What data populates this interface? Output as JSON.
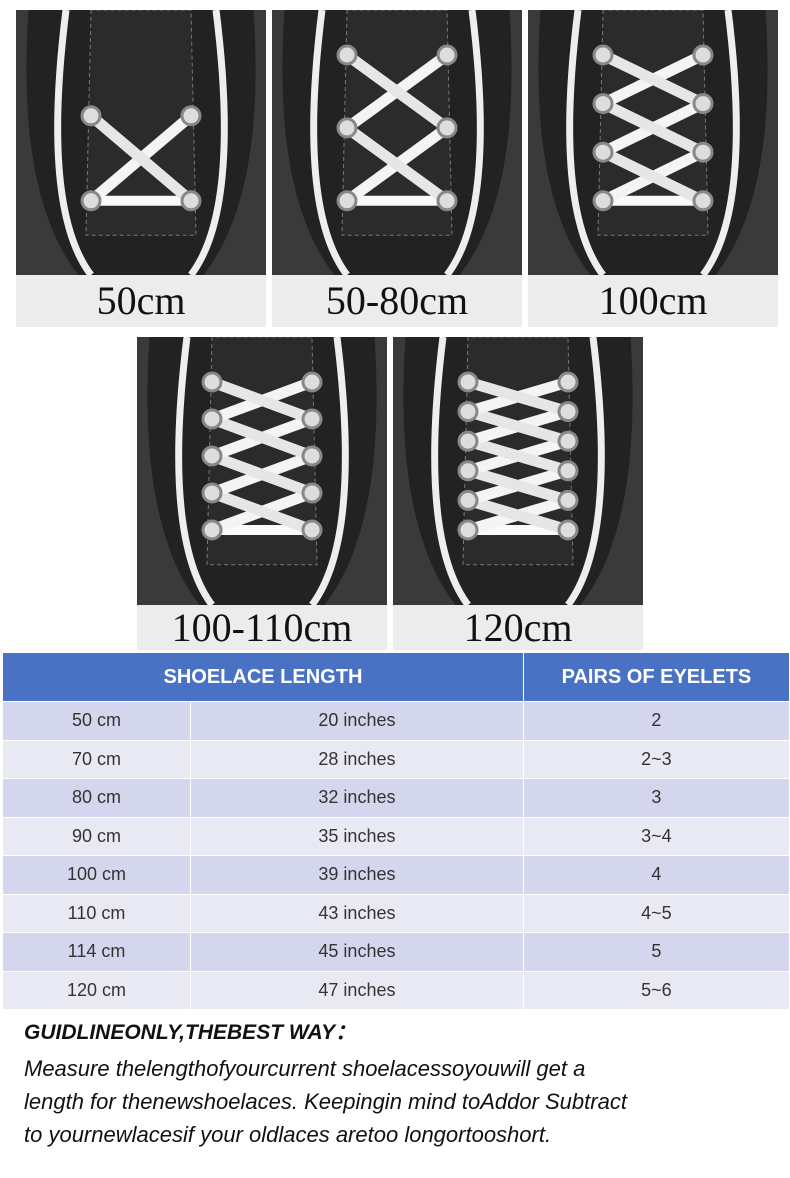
{
  "panels": [
    {
      "label": "50cm"
    },
    {
      "label": "50-80cm"
    },
    {
      "label": "100cm"
    },
    {
      "label": "100-110cm"
    },
    {
      "label": "120cm"
    }
  ],
  "table": {
    "headers": [
      "SHOELACE LENGTH",
      "PAIRS OF EYELETS"
    ],
    "rows": [
      [
        "50 cm",
        "20 inches",
        "2"
      ],
      [
        "70  cm",
        "28 inches",
        "2~3"
      ],
      [
        "80  cm",
        "32 inches",
        "3"
      ],
      [
        "90  cm",
        "35 inches",
        "3~4"
      ],
      [
        "100 cm",
        "39 inches",
        "4"
      ],
      [
        "110 cm",
        "43 inches",
        "4~5"
      ],
      [
        "114 cm",
        "45 inches",
        "5"
      ],
      [
        "120 cm",
        "47 inches",
        "5~6"
      ]
    ]
  },
  "note": {
    "title": "GUIDLINEONLY,THEBEST WAY：",
    "lines": [
      "Measure thelengthofyourcurrent shoelacessoyouwill get a",
      "length for thenewshoelaces. Keepingin mind toAddor Subtract",
      "to  yournewlacesif your oldlaces aretoo longortooshort."
    ]
  }
}
